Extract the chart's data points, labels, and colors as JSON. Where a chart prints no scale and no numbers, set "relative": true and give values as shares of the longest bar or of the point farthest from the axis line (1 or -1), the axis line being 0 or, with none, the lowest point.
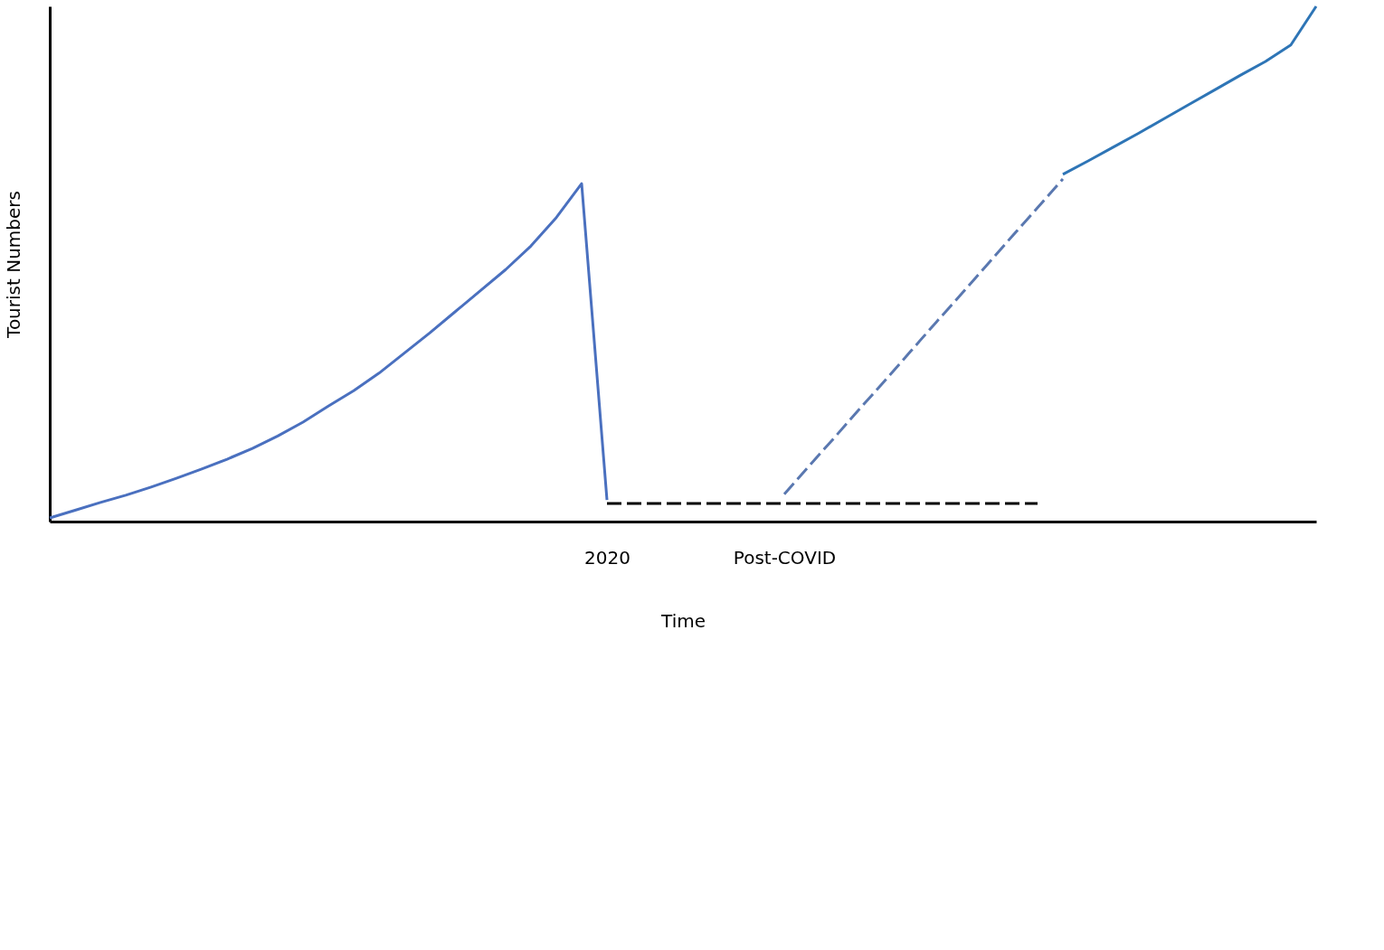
{
  "chart_data": {
    "type": "line",
    "relative": true,
    "xlabel": "Time",
    "ylabel": "Tourist Numbers",
    "grid": false,
    "categories": [
      null,
      null,
      null,
      null,
      null,
      null,
      null,
      null,
      null,
      null,
      null,
      null,
      null,
      null,
      null,
      null,
      null,
      null,
      null,
      null,
      null,
      null,
      "2020",
      null,
      null,
      null,
      null,
      null,
      null,
      "Post-COVID",
      null,
      null,
      null,
      null,
      null,
      null,
      null,
      null,
      null,
      null,
      null,
      null,
      null,
      null,
      null,
      null,
      null,
      null,
      null,
      null,
      null
    ],
    "series": [
      {
        "color": "#4a70bf",
        "line_style": "solid",
        "values": [
          0.007,
          0.022,
          0.037,
          0.051,
          0.067,
          0.084,
          0.102,
          0.121,
          0.142,
          0.166,
          0.193,
          0.224,
          0.254,
          0.288,
          0.327,
          0.366,
          0.407,
          0.448,
          0.489,
          0.535,
          0.59,
          0.656,
          0.042,
          null,
          null,
          null,
          null,
          null,
          null,
          null,
          null,
          null,
          null,
          null,
          null,
          null,
          null,
          null,
          null,
          null,
          null,
          null,
          null,
          null,
          null,
          null,
          null,
          null,
          null,
          null,
          null
        ]
      },
      {
        "color": "#000000",
        "line_style": "dashed",
        "values": [
          null,
          null,
          null,
          null,
          null,
          null,
          null,
          null,
          null,
          null,
          null,
          null,
          null,
          null,
          null,
          null,
          null,
          null,
          null,
          null,
          null,
          null,
          0.035,
          0.035,
          0.035,
          0.035,
          0.035,
          0.035,
          0.035,
          0.035,
          0.035,
          0.035,
          0.035,
          0.035,
          0.035,
          0.035,
          0.035,
          0.035,
          0.035,
          0.035,
          null,
          null,
          null,
          null,
          null,
          null,
          null,
          null,
          null,
          null,
          null
        ]
      },
      {
        "color": "#5a78b0",
        "line_style": "dashed",
        "values": [
          null,
          null,
          null,
          null,
          null,
          null,
          null,
          null,
          null,
          null,
          null,
          null,
          null,
          null,
          null,
          null,
          null,
          null,
          null,
          null,
          null,
          null,
          null,
          null,
          null,
          null,
          null,
          null,
          null,
          0.053,
          0.109,
          0.164,
          0.22,
          0.275,
          0.331,
          0.387,
          0.442,
          0.498,
          0.554,
          0.609,
          0.665,
          null,
          null,
          null,
          null,
          null,
          null,
          null,
          null,
          null,
          null
        ]
      },
      {
        "color": "#2e75b6",
        "line_style": "solid",
        "values": [
          null,
          null,
          null,
          null,
          null,
          null,
          null,
          null,
          null,
          null,
          null,
          null,
          null,
          null,
          null,
          null,
          null,
          null,
          null,
          null,
          null,
          null,
          null,
          null,
          null,
          null,
          null,
          null,
          null,
          null,
          null,
          null,
          null,
          null,
          null,
          null,
          null,
          null,
          null,
          null,
          0.674,
          0.7,
          0.727,
          0.754,
          0.782,
          0.81,
          0.838,
          0.866,
          0.893,
          0.925,
          1
        ]
      }
    ]
  }
}
